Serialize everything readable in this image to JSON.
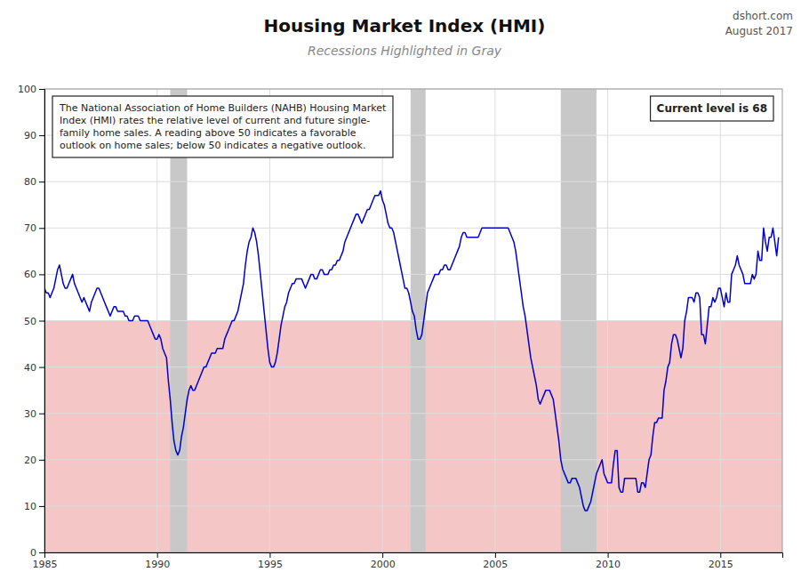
{
  "chart_data": {
    "type": "line",
    "title": "Housing Market Index (HMI)",
    "subtitle": "Recessions Highlighted in Gray",
    "watermark": [
      "dshort.com",
      "August 2017"
    ],
    "note": "The National Association of Home Builders (NAHB) Housing Market\nIndex (HMI) rates the relative level of current and future single-\nfamily home sales. A reading above 50 indicates a favorable\noutlook on home sales; below 50 indicates a negative outlook.",
    "callout": "Current level is 68",
    "color": "#0000cc",
    "grid": true,
    "xlim": [
      1985,
      2017.75
    ],
    "ylim": [
      0,
      100
    ],
    "xticks": [
      1985,
      1990,
      1995,
      2000,
      2005,
      2010,
      2015
    ],
    "yticks": [
      0,
      10,
      20,
      30,
      40,
      50,
      60,
      70,
      80,
      90,
      100
    ],
    "threshold": 50,
    "threshold_color": "#f5c6c6",
    "recessions": [
      [
        1990.583,
        1991.333
      ],
      [
        2001.25,
        2001.917
      ],
      [
        2007.917,
        2009.5
      ]
    ],
    "recession_color": "#c8c8c8",
    "x": [
      1985.0,
      1985.083,
      1985.167,
      1985.25,
      1985.333,
      1985.417,
      1985.5,
      1985.583,
      1985.667,
      1985.75,
      1985.833,
      1985.917,
      1986.0,
      1986.083,
      1986.167,
      1986.25,
      1986.333,
      1986.417,
      1986.5,
      1986.583,
      1986.667,
      1986.75,
      1986.833,
      1986.917,
      1987.0,
      1987.083,
      1987.167,
      1987.25,
      1987.333,
      1987.417,
      1987.5,
      1987.583,
      1987.667,
      1987.75,
      1987.833,
      1987.917,
      1988.0,
      1988.083,
      1988.167,
      1988.25,
      1988.333,
      1988.417,
      1988.5,
      1988.583,
      1988.667,
      1988.75,
      1988.833,
      1988.917,
      1989.0,
      1989.083,
      1989.167,
      1989.25,
      1989.333,
      1989.417,
      1989.5,
      1989.583,
      1989.667,
      1989.75,
      1989.833,
      1989.917,
      1990.0,
      1990.083,
      1990.167,
      1990.25,
      1990.333,
      1990.417,
      1990.5,
      1990.583,
      1990.667,
      1990.75,
      1990.833,
      1990.917,
      1991.0,
      1991.083,
      1991.167,
      1991.25,
      1991.333,
      1991.417,
      1991.5,
      1991.583,
      1991.667,
      1991.75,
      1991.833,
      1991.917,
      1992.0,
      1992.083,
      1992.167,
      1992.25,
      1992.333,
      1992.417,
      1992.5,
      1992.583,
      1992.667,
      1992.75,
      1992.833,
      1992.917,
      1993.0,
      1993.083,
      1993.167,
      1993.25,
      1993.333,
      1993.417,
      1993.5,
      1993.583,
      1993.667,
      1993.75,
      1993.833,
      1993.917,
      1994.0,
      1994.083,
      1994.167,
      1994.25,
      1994.333,
      1994.417,
      1994.5,
      1994.583,
      1994.667,
      1994.75,
      1994.833,
      1994.917,
      1995.0,
      1995.083,
      1995.167,
      1995.25,
      1995.333,
      1995.417,
      1995.5,
      1995.583,
      1995.667,
      1995.75,
      1995.833,
      1995.917,
      1996.0,
      1996.083,
      1996.167,
      1996.25,
      1996.333,
      1996.417,
      1996.5,
      1996.583,
      1996.667,
      1996.75,
      1996.833,
      1996.917,
      1997.0,
      1997.083,
      1997.167,
      1997.25,
      1997.333,
      1997.417,
      1997.5,
      1997.583,
      1997.667,
      1997.75,
      1997.833,
      1997.917,
      1998.0,
      1998.083,
      1998.167,
      1998.25,
      1998.333,
      1998.417,
      1998.5,
      1998.583,
      1998.667,
      1998.75,
      1998.833,
      1998.917,
      1999.0,
      1999.083,
      1999.167,
      1999.25,
      1999.333,
      1999.417,
      1999.5,
      1999.583,
      1999.667,
      1999.75,
      1999.833,
      1999.917,
      2000.0,
      2000.083,
      2000.167,
      2000.25,
      2000.333,
      2000.417,
      2000.5,
      2000.583,
      2000.667,
      2000.75,
      2000.833,
      2000.917,
      2001.0,
      2001.083,
      2001.167,
      2001.25,
      2001.333,
      2001.417,
      2001.5,
      2001.583,
      2001.667,
      2001.75,
      2001.833,
      2001.917,
      2002.0,
      2002.083,
      2002.167,
      2002.25,
      2002.333,
      2002.417,
      2002.5,
      2002.583,
      2002.667,
      2002.75,
      2002.833,
      2002.917,
      2003.0,
      2003.083,
      2003.167,
      2003.25,
      2003.333,
      2003.417,
      2003.5,
      2003.583,
      2003.667,
      2003.75,
      2003.833,
      2003.917,
      2004.0,
      2004.083,
      2004.167,
      2004.25,
      2004.333,
      2004.417,
      2004.5,
      2004.583,
      2004.667,
      2004.75,
      2004.833,
      2004.917,
      2005.0,
      2005.083,
      2005.167,
      2005.25,
      2005.333,
      2005.417,
      2005.5,
      2005.583,
      2005.667,
      2005.75,
      2005.833,
      2005.917,
      2006.0,
      2006.083,
      2006.167,
      2006.25,
      2006.333,
      2006.417,
      2006.5,
      2006.583,
      2006.667,
      2006.75,
      2006.833,
      2006.917,
      2007.0,
      2007.083,
      2007.167,
      2007.25,
      2007.333,
      2007.417,
      2007.5,
      2007.583,
      2007.667,
      2007.75,
      2007.833,
      2007.917,
      2008.0,
      2008.083,
      2008.167,
      2008.25,
      2008.333,
      2008.417,
      2008.5,
      2008.583,
      2008.667,
      2008.75,
      2008.833,
      2008.917,
      2009.0,
      2009.083,
      2009.167,
      2009.25,
      2009.333,
      2009.417,
      2009.5,
      2009.583,
      2009.667,
      2009.75,
      2009.833,
      2009.917,
      2010.0,
      2010.083,
      2010.167,
      2010.25,
      2010.333,
      2010.417,
      2010.5,
      2010.583,
      2010.667,
      2010.75,
      2010.833,
      2010.917,
      2011.0,
      2011.083,
      2011.167,
      2011.25,
      2011.333,
      2011.417,
      2011.5,
      2011.583,
      2011.667,
      2011.75,
      2011.833,
      2011.917,
      2012.0,
      2012.083,
      2012.167,
      2012.25,
      2012.333,
      2012.417,
      2012.5,
      2012.583,
      2012.667,
      2012.75,
      2012.833,
      2012.917,
      2013.0,
      2013.083,
      2013.167,
      2013.25,
      2013.333,
      2013.417,
      2013.5,
      2013.583,
      2013.667,
      2013.75,
      2013.833,
      2013.917,
      2014.0,
      2014.083,
      2014.167,
      2014.25,
      2014.333,
      2014.417,
      2014.5,
      2014.583,
      2014.667,
      2014.75,
      2014.833,
      2014.917,
      2015.0,
      2015.083,
      2015.167,
      2015.25,
      2015.333,
      2015.417,
      2015.5,
      2015.583,
      2015.667,
      2015.75,
      2015.833,
      2015.917,
      2016.0,
      2016.083,
      2016.167,
      2016.25,
      2016.333,
      2016.417,
      2016.5,
      2016.583,
      2016.667,
      2016.75,
      2016.833,
      2016.917,
      2017.0,
      2017.083,
      2017.167,
      2017.25,
      2017.333,
      2017.417,
      2017.5,
      2017.583
    ],
    "values": [
      57,
      56,
      56,
      55,
      56,
      57,
      59,
      61,
      62,
      60,
      58,
      57,
      57,
      58,
      59,
      60,
      58,
      57,
      56,
      55,
      54,
      55,
      54,
      53,
      52,
      54,
      55,
      56,
      57,
      57,
      56,
      55,
      54,
      53,
      52,
      51,
      52,
      53,
      53,
      52,
      52,
      52,
      52,
      51,
      51,
      50,
      50,
      50,
      51,
      51,
      51,
      50,
      50,
      50,
      50,
      50,
      49,
      48,
      47,
      46,
      46,
      47,
      46,
      44,
      43,
      42,
      37,
      33,
      28,
      24,
      22,
      21,
      22,
      25,
      27,
      30,
      33,
      35,
      36,
      35,
      35,
      36,
      37,
      38,
      39,
      40,
      40,
      41,
      42,
      43,
      43,
      43,
      44,
      44,
      44,
      44,
      46,
      47,
      48,
      49,
      50,
      50,
      51,
      52,
      54,
      56,
      58,
      62,
      65,
      67,
      68,
      70,
      69,
      67,
      64,
      60,
      56,
      52,
      48,
      44,
      41,
      40,
      40,
      41,
      43,
      46,
      49,
      51,
      53,
      54,
      56,
      57,
      58,
      58,
      59,
      59,
      59,
      59,
      58,
      57,
      58,
      59,
      60,
      60,
      59,
      59,
      60,
      61,
      61,
      60,
      60,
      60,
      61,
      61,
      62,
      62,
      63,
      63,
      64,
      65,
      67,
      68,
      69,
      70,
      71,
      72,
      73,
      73,
      72,
      71,
      72,
      73,
      74,
      74,
      75,
      76,
      77,
      77,
      77,
      78,
      76,
      75,
      73,
      71,
      70,
      70,
      69,
      67,
      65,
      63,
      61,
      59,
      57,
      57,
      56,
      54,
      52,
      51,
      48,
      46,
      46,
      47,
      50,
      53,
      56,
      57,
      58,
      59,
      60,
      60,
      60,
      61,
      61,
      62,
      62,
      61,
      61,
      62,
      63,
      64,
      65,
      66,
      68,
      69,
      69,
      68,
      68,
      68,
      68,
      68,
      68,
      68,
      69,
      70,
      70,
      70,
      70,
      70,
      70,
      70,
      70,
      70,
      70,
      70,
      70,
      70,
      70,
      70,
      69,
      68,
      67,
      65,
      62,
      59,
      56,
      53,
      51,
      48,
      45,
      42,
      40,
      38,
      36,
      33,
      32,
      33,
      34,
      35,
      35,
      35,
      34,
      33,
      30,
      27,
      24,
      20,
      18,
      17,
      16,
      15,
      15,
      16,
      16,
      16,
      15,
      14,
      12,
      10,
      9,
      9,
      10,
      11,
      13,
      15,
      17,
      18,
      19,
      20,
      17,
      16,
      15,
      15,
      15,
      19,
      22,
      22,
      14,
      13,
      13,
      16,
      16,
      16,
      16,
      16,
      16,
      16,
      13,
      13,
      15,
      15,
      14,
      17,
      20,
      21,
      25,
      28,
      28,
      29,
      29,
      29,
      35,
      37,
      40,
      41,
      45,
      47,
      47,
      46,
      44,
      42,
      44,
      50,
      52,
      55,
      55,
      55,
      54,
      56,
      56,
      55,
      47,
      47,
      45,
      49,
      53,
      53,
      55,
      54,
      55,
      57,
      57,
      55,
      53,
      56,
      54,
      54,
      60,
      61,
      62,
      64,
      62,
      61,
      60,
      58,
      58,
      58,
      58,
      60,
      59,
      60,
      65,
      63,
      63,
      70,
      67,
      65,
      68,
      68,
      70,
      67,
      64,
      68
    ]
  }
}
